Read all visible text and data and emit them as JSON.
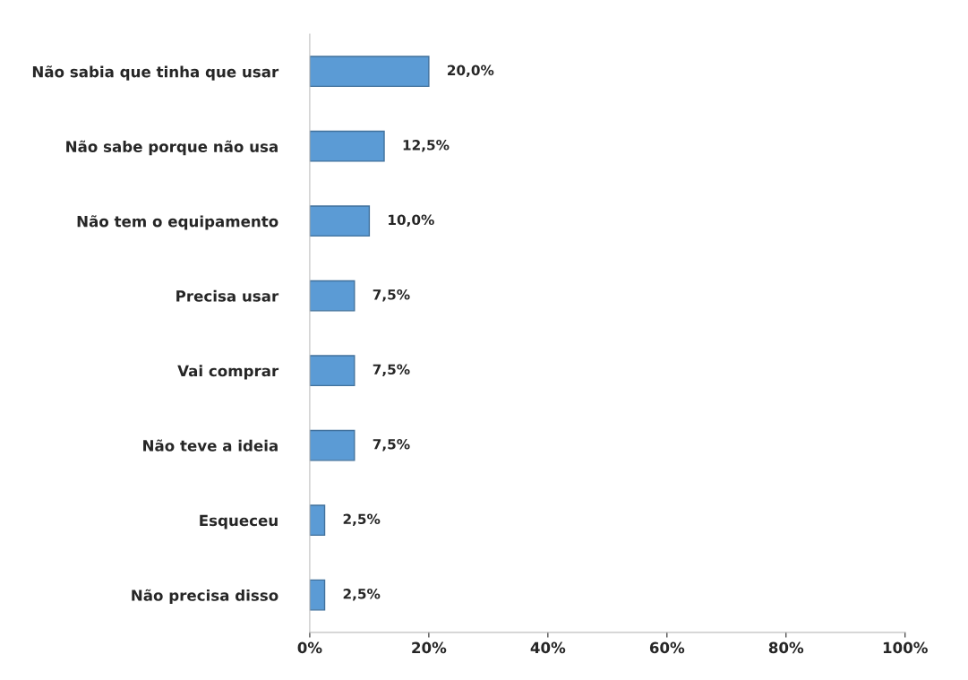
{
  "chart_data": {
    "type": "bar",
    "orientation": "horizontal",
    "categories": [
      "Não sabia que tinha que usar",
      "Não sabe porque não usa",
      "Não tem o equipamento",
      "Precisa usar",
      "Vai comprar",
      "Não teve a ideia",
      "Esqueceu",
      "Não precisa disso"
    ],
    "values": [
      20.0,
      12.5,
      10.0,
      7.5,
      7.5,
      7.5,
      2.5,
      2.5
    ],
    "value_labels": [
      "20,0%",
      "12,5%",
      "10,0%",
      "7,5%",
      "7,5%",
      "7,5%",
      "2,5%",
      "2,5%"
    ],
    "color": "#5b9bd5",
    "xlim": [
      0,
      100
    ],
    "xticks": [
      {
        "value": 0,
        "label": "0%"
      },
      {
        "value": 20,
        "label": "20%"
      },
      {
        "value": 40,
        "label": "40%"
      },
      {
        "value": 60,
        "label": "60%"
      },
      {
        "value": 80,
        "label": "80%"
      },
      {
        "value": 100,
        "label": "100%"
      }
    ],
    "grid": false,
    "legend": false
  }
}
